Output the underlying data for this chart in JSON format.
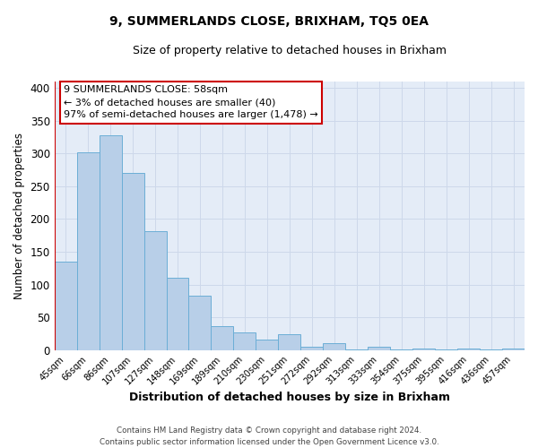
{
  "title": "9, SUMMERLANDS CLOSE, BRIXHAM, TQ5 0EA",
  "subtitle": "Size of property relative to detached houses in Brixham",
  "xlabel": "Distribution of detached houses by size in Brixham",
  "ylabel": "Number of detached properties",
  "bar_labels": [
    "45sqm",
    "66sqm",
    "86sqm",
    "107sqm",
    "127sqm",
    "148sqm",
    "169sqm",
    "189sqm",
    "210sqm",
    "230sqm",
    "251sqm",
    "272sqm",
    "292sqm",
    "313sqm",
    "333sqm",
    "354sqm",
    "375sqm",
    "395sqm",
    "416sqm",
    "436sqm",
    "457sqm"
  ],
  "bar_values": [
    135,
    302,
    327,
    270,
    181,
    111,
    83,
    37,
    27,
    17,
    25,
    5,
    11,
    1,
    6,
    1,
    3,
    1,
    2,
    1,
    2
  ],
  "bar_color": "#b8cfe8",
  "bar_edge_color": "#6baed6",
  "annotation_line1": "9 SUMMERLANDS CLOSE: 58sqm",
  "annotation_line2": "← 3% of detached houses are smaller (40)",
  "annotation_line3": "97% of semi-detached houses are larger (1,478) →",
  "annotation_box_color": "#ffffff",
  "annotation_box_edge_color": "#cc0000",
  "red_line_x": -0.5,
  "ylim": [
    0,
    410
  ],
  "yticks": [
    0,
    50,
    100,
    150,
    200,
    250,
    300,
    350,
    400
  ],
  "grid_color": "#cdd8ea",
  "bg_color": "#e4ecf7",
  "footer_line1": "Contains HM Land Registry data © Crown copyright and database right 2024.",
  "footer_line2": "Contains public sector information licensed under the Open Government Licence v3.0."
}
